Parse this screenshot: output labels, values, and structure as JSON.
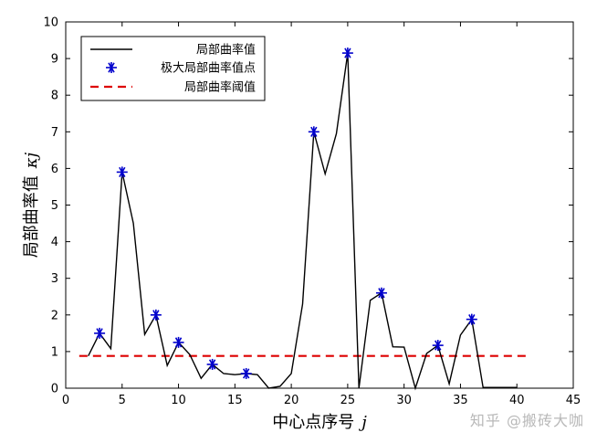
{
  "chart_data": {
    "type": "line",
    "xlabel_text": "中心点序号",
    "xlabel_var": "j",
    "ylabel_text": "局部曲率值",
    "ylabel_var": "κj",
    "xlim": [
      0,
      45
    ],
    "ylim": [
      0,
      10
    ],
    "x_ticks": [
      "0",
      "5",
      "10",
      "15",
      "20",
      "25",
      "30",
      "35",
      "40",
      "45"
    ],
    "y_ticks": [
      "0",
      "1",
      "2",
      "3",
      "4",
      "5",
      "6",
      "7",
      "8",
      "9",
      "10"
    ],
    "grid": false,
    "legend_position": "top-left",
    "series": [
      {
        "name": "局部曲率值",
        "style": "line",
        "color": "#000000",
        "x": [
          2,
          3,
          4,
          5,
          6,
          7,
          8,
          9,
          10,
          11,
          12,
          13,
          14,
          15,
          16,
          17,
          18,
          19,
          20,
          21,
          22,
          23,
          24,
          25,
          26,
          27,
          28,
          29,
          30,
          31,
          32,
          33,
          34,
          35,
          36,
          37,
          38,
          39,
          40
        ],
        "y": [
          0.88,
          1.5,
          1.08,
          5.9,
          4.5,
          1.47,
          2.0,
          0.62,
          1.25,
          0.92,
          0.27,
          0.65,
          0.4,
          0.37,
          0.4,
          0.37,
          0.0,
          0.05,
          0.4,
          2.3,
          7.0,
          5.85,
          6.95,
          9.15,
          0.0,
          2.4,
          2.6,
          1.13,
          1.12,
          0.0,
          0.95,
          1.17,
          0.12,
          1.45,
          1.88,
          0.02,
          0.02,
          0.02,
          0.02
        ]
      },
      {
        "name": "极大局部曲率值点",
        "style": "marker",
        "color": "#0000cc",
        "x": [
          3,
          5,
          8,
          10,
          13,
          16,
          22,
          25,
          28,
          33,
          36
        ],
        "y": [
          1.5,
          5.9,
          2.0,
          1.25,
          0.65,
          0.4,
          7.0,
          9.15,
          2.6,
          1.17,
          1.88
        ]
      },
      {
        "name": "局部曲率阈值",
        "style": "dashed",
        "color": "#dd0000",
        "x": [
          1.2,
          41
        ],
        "y": [
          0.88,
          0.88
        ]
      }
    ]
  },
  "watermark": "知乎 @搬砖大咖"
}
